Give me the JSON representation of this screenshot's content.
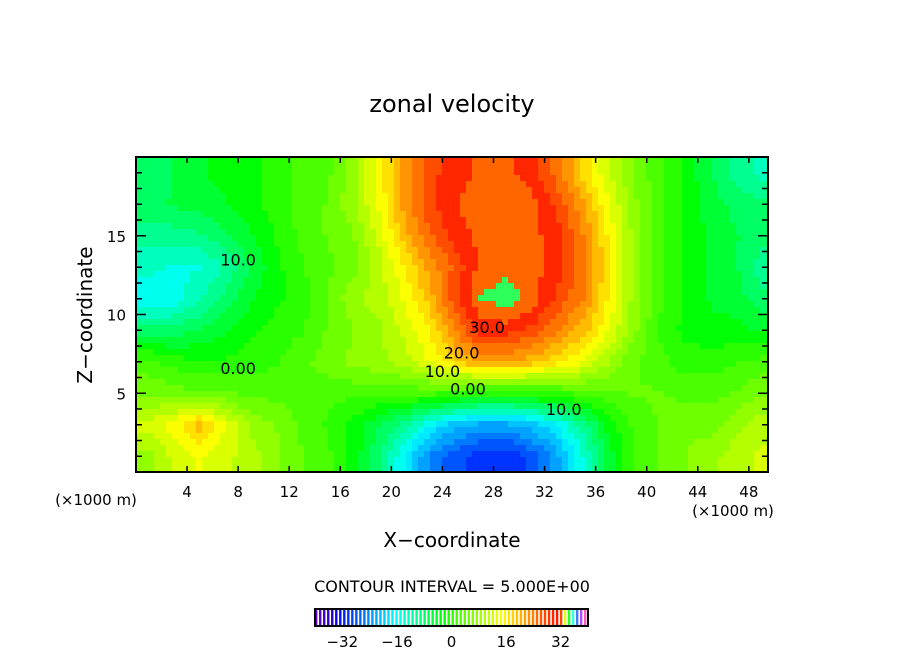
{
  "chart_data": {
    "type": "heatmap",
    "subtype": "filled contour",
    "title": "zonal velocity",
    "xlabel": "X−coordinate",
    "ylabel": "Z−coordinate",
    "x_unit_label": "(×1000 m)",
    "xlim": [
      0,
      49.5
    ],
    "ylim": [
      0,
      20
    ],
    "xticks": [
      4,
      8,
      12,
      16,
      20,
      24,
      28,
      32,
      36,
      40,
      44,
      48
    ],
    "yticks": [
      5,
      10,
      15
    ],
    "grid_x": [
      1,
      3,
      5,
      7,
      9,
      11,
      13,
      15,
      17,
      19,
      21,
      23,
      25,
      27,
      29,
      31,
      33,
      35,
      37,
      39,
      41,
      43,
      45,
      47,
      49
    ],
    "grid_z": [
      19,
      17,
      15,
      13,
      11,
      9,
      7,
      5,
      3,
      1
    ],
    "values": [
      [
        -8,
        -6,
        -4,
        -3,
        -2,
        0,
        2,
        3,
        8,
        15,
        22,
        28,
        30,
        32,
        32,
        30,
        25,
        18,
        12,
        6,
        2,
        -2,
        -6,
        -10,
        -12
      ],
      [
        -7,
        -6,
        -5,
        -4,
        -2,
        0,
        2,
        4,
        8,
        14,
        22,
        28,
        31,
        33,
        33,
        32,
        28,
        22,
        14,
        7,
        2,
        -2,
        -5,
        -7,
        -8
      ],
      [
        -10,
        -10,
        -9,
        -7,
        -4,
        -1,
        2,
        4,
        6,
        12,
        20,
        26,
        30,
        32,
        33,
        32,
        30,
        24,
        16,
        8,
        2,
        -2,
        -4,
        -6,
        -8
      ],
      [
        -13,
        -14,
        -14,
        -11,
        -6,
        -2,
        1,
        3,
        5,
        10,
        16,
        22,
        27,
        32,
        33,
        32,
        30,
        25,
        17,
        8,
        2,
        -2,
        -4,
        -6,
        -10
      ],
      [
        -16,
        -15,
        -12,
        -8,
        -4,
        -2,
        0,
        4,
        8,
        10,
        14,
        20,
        28,
        34,
        35,
        33,
        28,
        24,
        16,
        8,
        2,
        -2,
        -4,
        -5,
        -8
      ],
      [
        -8,
        -8,
        -6,
        -4,
        -2,
        0,
        1,
        4,
        6,
        8,
        12,
        16,
        24,
        30,
        30,
        28,
        24,
        20,
        14,
        7,
        1,
        -2,
        -3,
        -3,
        -4
      ],
      [
        2,
        0,
        -1,
        -1,
        0,
        1,
        3,
        5,
        7,
        8,
        10,
        14,
        18,
        22,
        22,
        20,
        17,
        14,
        9,
        4,
        2,
        0,
        0,
        1,
        2
      ],
      [
        6,
        5,
        4,
        4,
        3,
        3,
        3,
        2,
        2,
        2,
        2,
        2,
        1,
        0,
        0,
        0,
        1,
        2,
        3,
        4,
        4,
        3,
        3,
        4,
        6
      ],
      [
        12,
        15,
        20,
        14,
        8,
        6,
        3,
        1,
        -2,
        -6,
        -10,
        -16,
        -20,
        -22,
        -22,
        -20,
        -16,
        -10,
        -3,
        2,
        4,
        6,
        5,
        8,
        10
      ],
      [
        8,
        12,
        14,
        12,
        10,
        7,
        4,
        2,
        -2,
        -8,
        -16,
        -24,
        -28,
        -30,
        -31,
        -28,
        -22,
        -14,
        -5,
        1,
        4,
        6,
        8,
        10,
        12
      ]
    ],
    "contour_labels": [
      {
        "text": "10.0",
        "x": 8.0,
        "z": 13.5
      },
      {
        "text": "0.00",
        "x": 8.0,
        "z": 6.6
      },
      {
        "text": "30.0",
        "x": 27.5,
        "z": 9.2
      },
      {
        "text": "20.0",
        "x": 25.5,
        "z": 7.6
      },
      {
        "text": "10.0",
        "x": 24.0,
        "z": 6.4
      },
      {
        "text": "0.00",
        "x": 26.0,
        "z": 5.3
      },
      {
        "text": "10.0",
        "x": 33.5,
        "z": 4.0
      }
    ],
    "colorbar": {
      "range": [
        -40,
        40
      ],
      "ticks": [
        "-32",
        "-16",
        "0",
        "16",
        "32"
      ],
      "tick_values": [
        -32,
        -16,
        0,
        16,
        32
      ],
      "caption": "CONTOUR INTERVAL = 5.000E+00"
    }
  }
}
